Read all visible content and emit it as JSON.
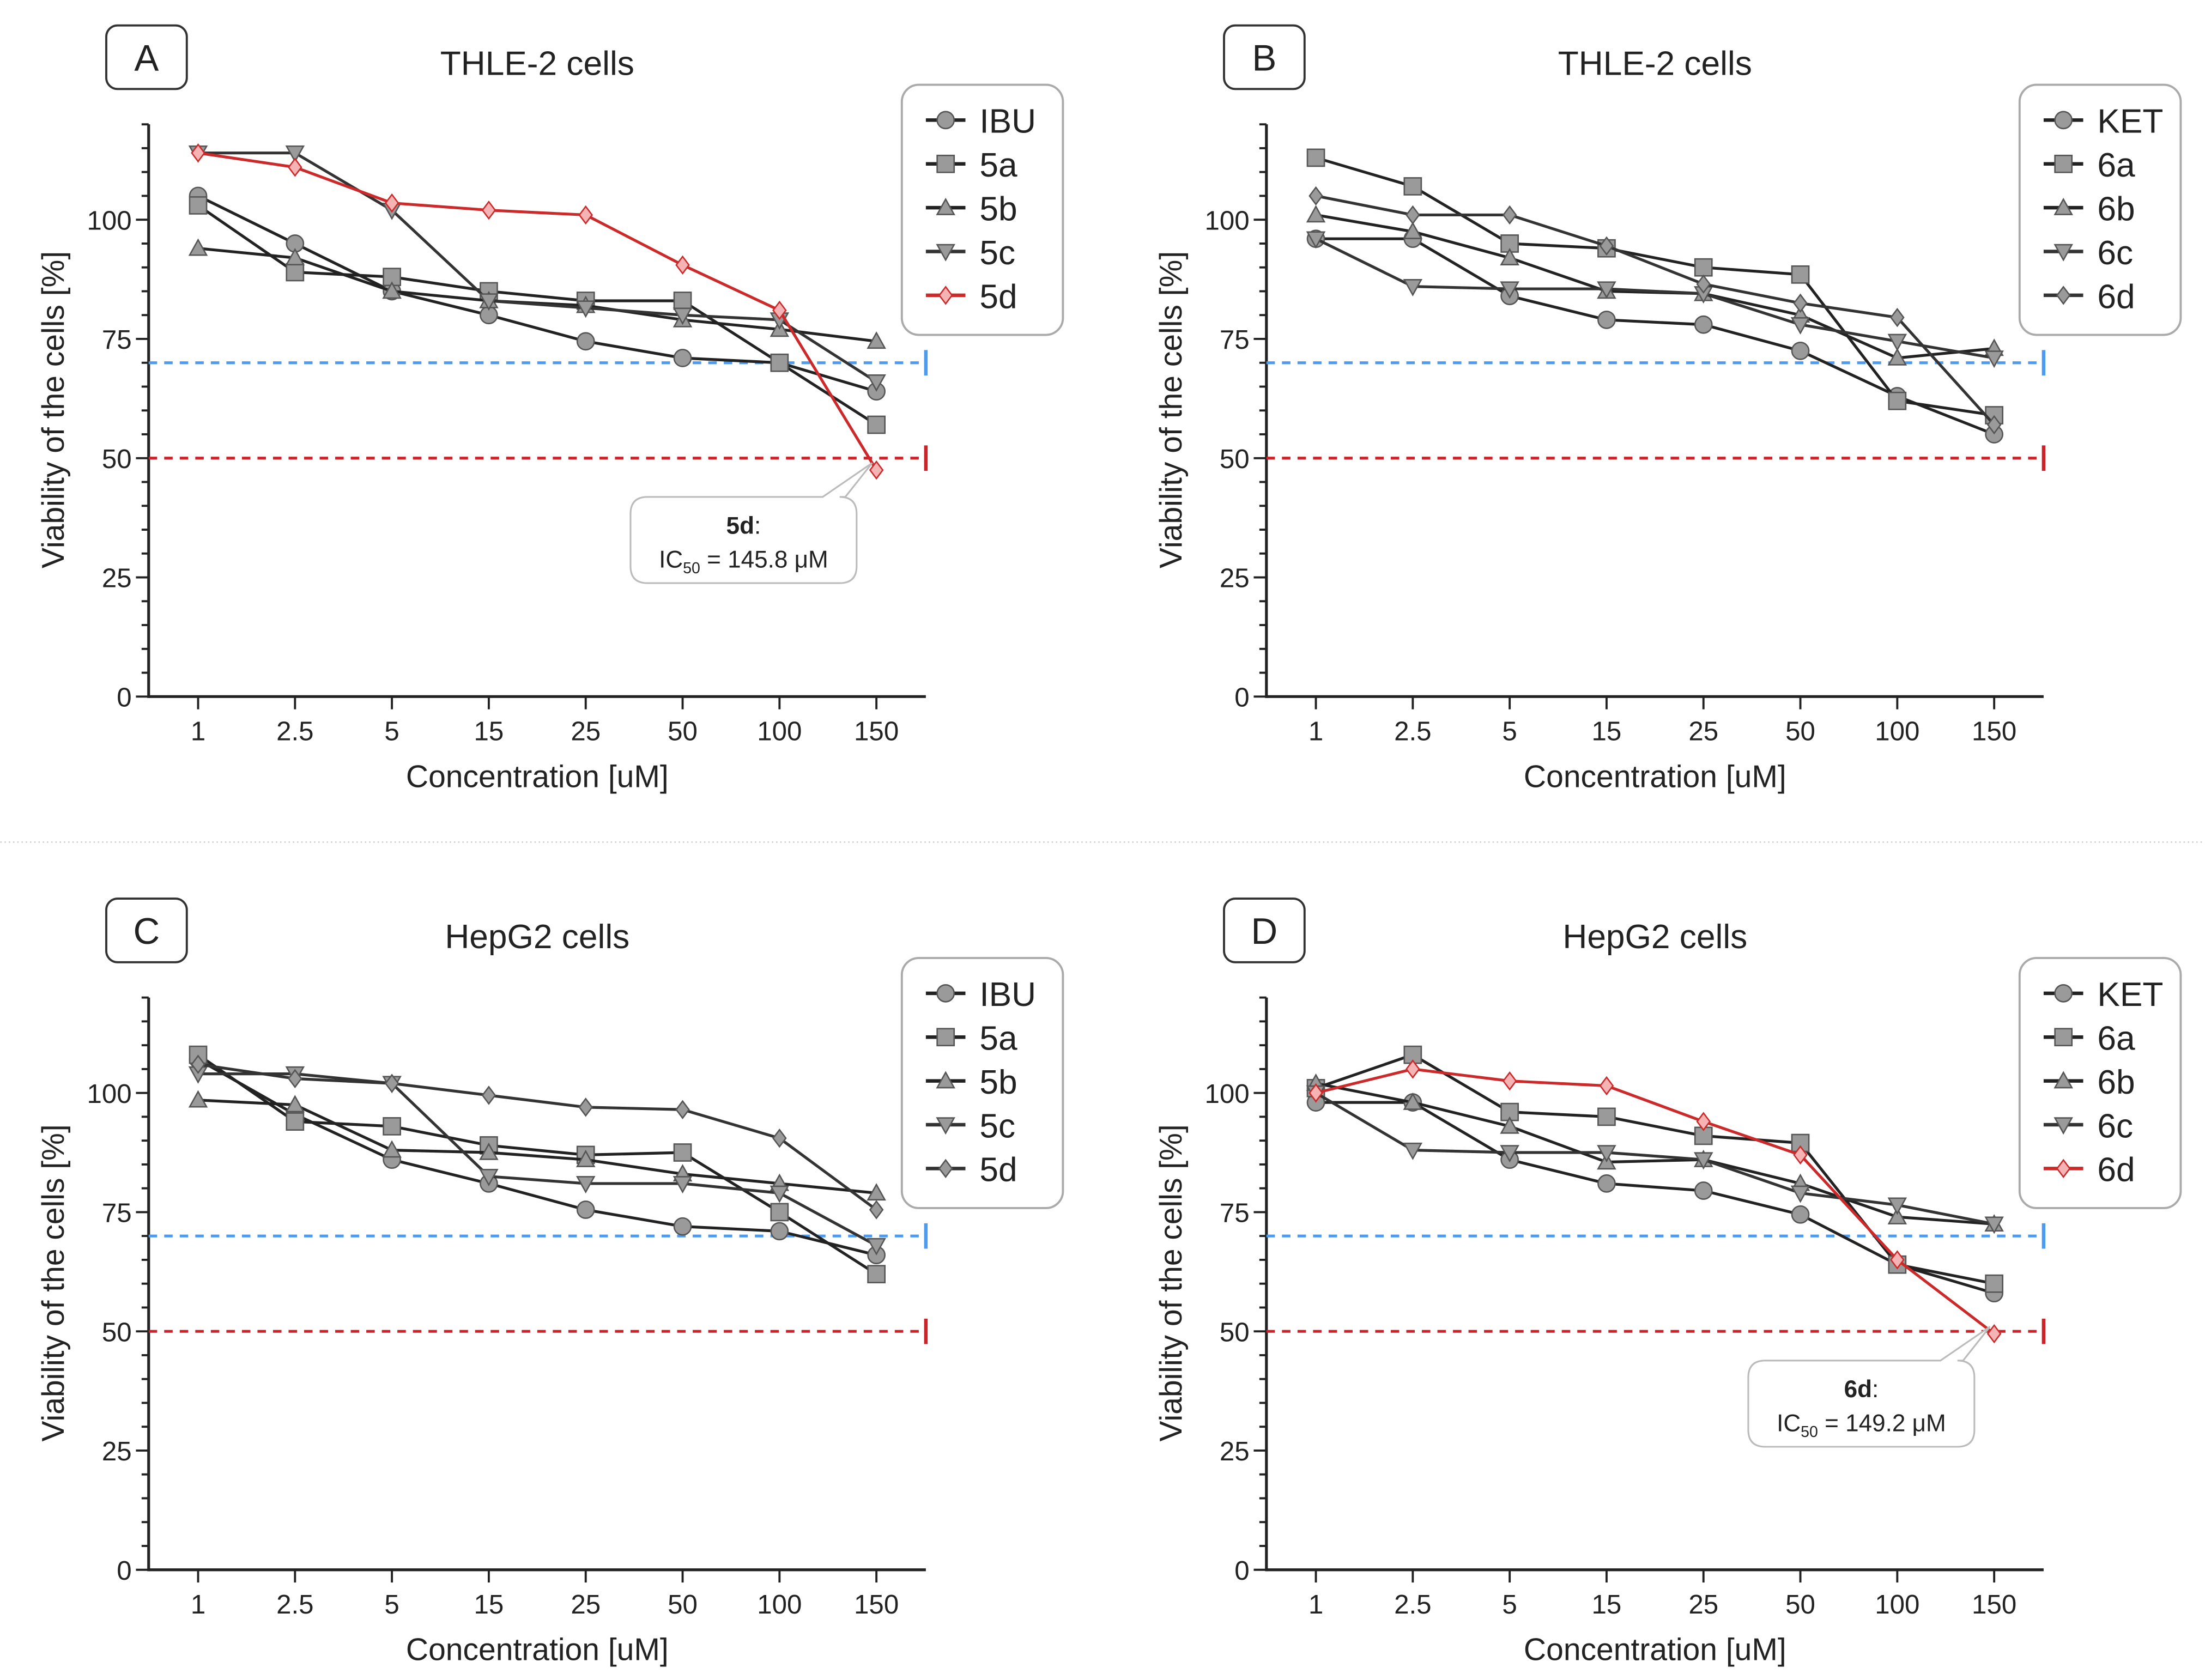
{
  "chart_data": [
    {
      "panel": "A",
      "type": "line",
      "title": "THLE-2 cells",
      "xlabel": "Concentration [uM]",
      "ylabel": "Viability of the cells [%]",
      "categories": [
        "1",
        "2.5",
        "5",
        "15",
        "25",
        "50",
        "100",
        "150"
      ],
      "yticks": [
        0,
        25,
        50,
        75,
        100
      ],
      "ylim": [
        0,
        120
      ],
      "reference_lines": [
        {
          "y": 70,
          "color": "#4d9bf0"
        },
        {
          "y": 50,
          "color": "#cc2229"
        }
      ],
      "series": [
        {
          "name": "IBU",
          "marker": "circle",
          "color": "#222222",
          "values": [
            105,
            95,
            85,
            80,
            74.5,
            71,
            70,
            64
          ]
        },
        {
          "name": "5a",
          "marker": "square",
          "color": "#222222",
          "values": [
            103,
            89,
            88,
            85,
            83,
            83,
            70,
            57
          ]
        },
        {
          "name": "5b",
          "marker": "triangle-up",
          "color": "#222222",
          "values": [
            94,
            92,
            85,
            83,
            82,
            79,
            77,
            74.5
          ]
        },
        {
          "name": "5c",
          "marker": "triangle-down",
          "color": "#333333",
          "values": [
            114,
            114,
            102,
            83,
            81.5,
            80,
            79,
            66
          ]
        },
        {
          "name": "5d",
          "marker": "diamond",
          "color": "#cc2a2a",
          "values": [
            114,
            111,
            103.5,
            102,
            101,
            90.5,
            81,
            47.5
          ]
        }
      ],
      "annotation": {
        "compound": "5d",
        "text": "IC50 = 145.8 μM",
        "label": "IC",
        "sub": "50",
        "value": " = 145.8 μM"
      }
    },
    {
      "panel": "B",
      "type": "line",
      "title": "THLE-2 cells",
      "xlabel": "Concentration [uM]",
      "ylabel": "Viability of the cells [%]",
      "categories": [
        "1",
        "2.5",
        "5",
        "15",
        "25",
        "50",
        "100",
        "150"
      ],
      "yticks": [
        0,
        25,
        50,
        75,
        100
      ],
      "ylim": [
        0,
        120
      ],
      "reference_lines": [
        {
          "y": 70,
          "color": "#4d9bf0"
        },
        {
          "y": 50,
          "color": "#cc2229"
        }
      ],
      "series": [
        {
          "name": "KET",
          "marker": "circle",
          "color": "#222222",
          "values": [
            96,
            96,
            84,
            79,
            78,
            72.5,
            63,
            55
          ]
        },
        {
          "name": "6a",
          "marker": "square",
          "color": "#222222",
          "values": [
            113,
            107,
            95,
            94,
            90,
            88.5,
            62,
            59
          ]
        },
        {
          "name": "6b",
          "marker": "triangle-up",
          "color": "#222222",
          "values": [
            101,
            97.5,
            92,
            85,
            84.5,
            80,
            71,
            73
          ]
        },
        {
          "name": "6c",
          "marker": "triangle-down",
          "color": "#333333",
          "values": [
            96,
            86,
            85.5,
            85.5,
            84.5,
            78,
            74.5,
            71
          ]
        },
        {
          "name": "6d",
          "marker": "diamond",
          "color": "#333333",
          "values": [
            105,
            101,
            101,
            94.5,
            86.5,
            82.5,
            79.5,
            57
          ]
        }
      ]
    },
    {
      "panel": "C",
      "type": "line",
      "title": "HepG2 cells",
      "xlabel": "Concentration [uM]",
      "ylabel": "Viability of the cells [%]",
      "categories": [
        "1",
        "2.5",
        "5",
        "15",
        "25",
        "50",
        "100",
        "150"
      ],
      "yticks": [
        0,
        25,
        50,
        75,
        100
      ],
      "ylim": [
        0,
        120
      ],
      "reference_lines": [
        {
          "y": 70,
          "color": "#4d9bf0"
        },
        {
          "y": 50,
          "color": "#cc2229"
        }
      ],
      "series": [
        {
          "name": "IBU",
          "marker": "circle",
          "color": "#222222",
          "values": [
            107,
            95.5,
            86,
            81,
            75.5,
            72,
            71,
            66
          ]
        },
        {
          "name": "5a",
          "marker": "square",
          "color": "#222222",
          "values": [
            108,
            94,
            93,
            89,
            87,
            87.5,
            75,
            62
          ]
        },
        {
          "name": "5b",
          "marker": "triangle-up",
          "color": "#222222",
          "values": [
            98.5,
            97.5,
            88,
            87.5,
            86,
            83,
            81,
            79
          ]
        },
        {
          "name": "5c",
          "marker": "triangle-down",
          "color": "#333333",
          "values": [
            104,
            104,
            102,
            82.5,
            81,
            81,
            79,
            68
          ]
        },
        {
          "name": "5d",
          "marker": "diamond",
          "color": "#333333",
          "values": [
            106,
            103,
            102,
            99.5,
            97,
            96.5,
            90.5,
            75.5
          ]
        }
      ]
    },
    {
      "panel": "D",
      "type": "line",
      "title": "HepG2 cells",
      "xlabel": "Concentration [uM]",
      "ylabel": "Viability of the cells [%]",
      "categories": [
        "1",
        "2.5",
        "5",
        "15",
        "25",
        "50",
        "100",
        "150"
      ],
      "yticks": [
        0,
        25,
        50,
        75,
        100
      ],
      "ylim": [
        0,
        120
      ],
      "reference_lines": [
        {
          "y": 70,
          "color": "#4d9bf0"
        },
        {
          "y": 50,
          "color": "#cc2229"
        }
      ],
      "series": [
        {
          "name": "KET",
          "marker": "circle",
          "color": "#222222",
          "values": [
            98,
            98,
            86,
            81,
            79.5,
            74.5,
            64,
            58
          ]
        },
        {
          "name": "6a",
          "marker": "square",
          "color": "#222222",
          "values": [
            101,
            108,
            96,
            95,
            91,
            89.5,
            64,
            60
          ]
        },
        {
          "name": "6b",
          "marker": "triangle-up",
          "color": "#222222",
          "values": [
            102,
            98,
            93,
            85.5,
            86,
            81,
            74,
            72.5
          ]
        },
        {
          "name": "6c",
          "marker": "triangle-down",
          "color": "#333333",
          "values": [
            100,
            88,
            87.5,
            87.5,
            86,
            79,
            76.5,
            72.5
          ]
        },
        {
          "name": "6d",
          "marker": "diamond",
          "color": "#cc2a2a",
          "values": [
            100,
            105,
            102.5,
            101.5,
            94,
            87,
            65,
            49.5
          ]
        }
      ],
      "annotation": {
        "compound": "6d",
        "text": "IC50 = 149.2 μM",
        "label": "IC",
        "sub": "50",
        "value": " = 149.2 μM"
      }
    }
  ]
}
